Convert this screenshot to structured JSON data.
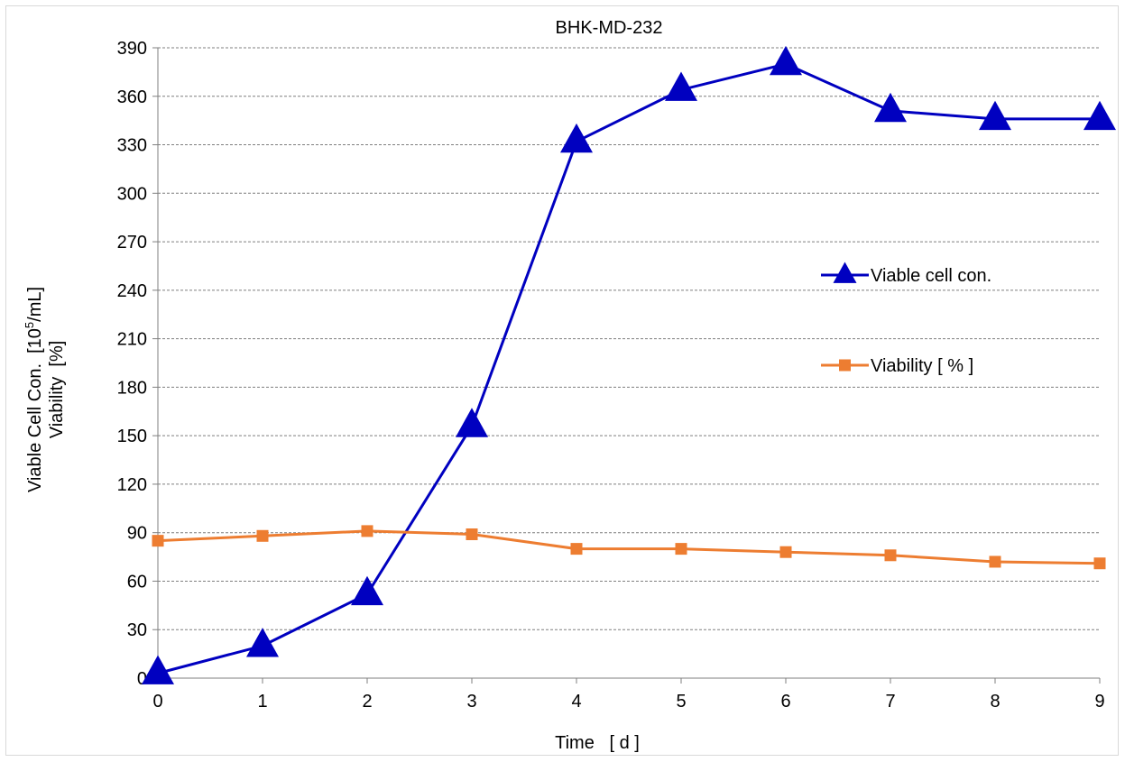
{
  "chart_data": {
    "type": "line",
    "title": "BHK-MD-232",
    "xlabel": "Time   [ d ]",
    "ylabel_line1_pre": "Viable Cell Con.  [10",
    "ylabel_line1_sup": "5",
    "ylabel_line1_post": "/mL]",
    "ylabel_line2": "Viability  [%]",
    "x": [
      0,
      1,
      2,
      3,
      4,
      5,
      6,
      7,
      8,
      9
    ],
    "xlim": [
      0,
      9
    ],
    "ylim": [
      0,
      390
    ],
    "yticks": [
      0,
      30,
      60,
      90,
      120,
      150,
      180,
      210,
      240,
      270,
      300,
      330,
      360,
      390
    ],
    "grid": true,
    "legend_position": "right-middle",
    "series": [
      {
        "name": "Viable cell con.",
        "color": "#0000c0",
        "marker": "triangle",
        "values": [
          3,
          20,
          52,
          156,
          332,
          364,
          380,
          351,
          346,
          346
        ]
      },
      {
        "name": "Viability [ % ]",
        "color": "#ed7d31",
        "marker": "square",
        "values": [
          85,
          88,
          91,
          89,
          80,
          80,
          78,
          76,
          72,
          71
        ]
      }
    ]
  }
}
